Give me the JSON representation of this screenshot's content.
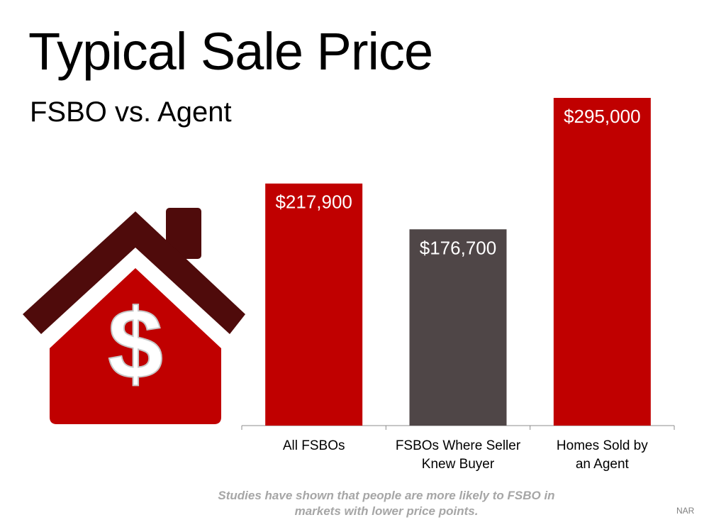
{
  "title": "Typical Sale Price",
  "subtitle": "FSBO vs. Agent",
  "footnote": "Studies have shown that people are more likely to FSBO in markets with lower price points.",
  "source": "NAR",
  "icon": {
    "name": "house-dollar-icon",
    "symbol": "$",
    "colors": {
      "roof": "#4f0b0b",
      "body": "#c00000",
      "symbol": "#ffffff"
    }
  },
  "chart_data": {
    "type": "bar",
    "categories": [
      "All FSBOs",
      "FSBOs Where Seller Knew Buyer",
      "Homes Sold by an Agent"
    ],
    "category_lines": [
      [
        "All FSBOs"
      ],
      [
        "FSBOs Where Seller",
        "Knew Buyer"
      ],
      [
        "Homes Sold by",
        "an Agent"
      ]
    ],
    "values": [
      217900,
      176700,
      295000
    ],
    "data_labels": [
      "$217,900",
      "$176,700",
      "$295,000"
    ],
    "colors": [
      "#c00000",
      "#4f4647",
      "#c00000"
    ],
    "ylim": [
      0,
      295000
    ],
    "grid": false,
    "legend": "none",
    "xlabel": "",
    "ylabel": ""
  }
}
